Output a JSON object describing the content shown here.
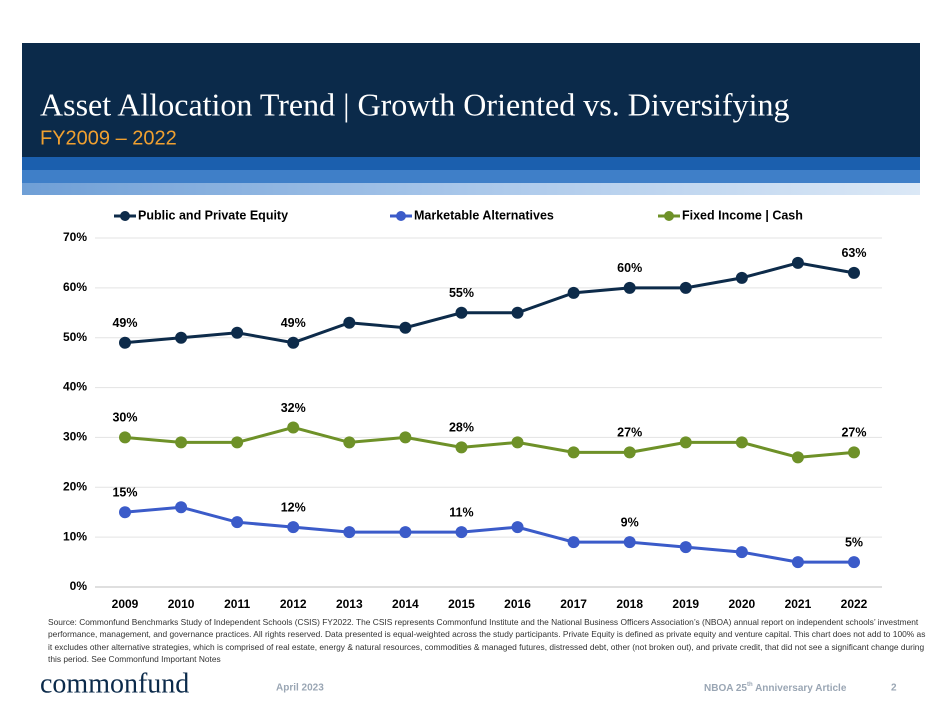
{
  "header": {
    "title": "Asset Allocation Trend | Growth Oriented vs. Diversifying",
    "subtitle": "FY2009 – 2022"
  },
  "chart_data": {
    "type": "line",
    "categories": [
      "2009",
      "2010",
      "2011",
      "2012",
      "2013",
      "2014",
      "2015",
      "2016",
      "2017",
      "2018",
      "2019",
      "2020",
      "2021",
      "2022"
    ],
    "series": [
      {
        "name": "Public and Private Equity",
        "color": "#0d2b4a",
        "values": [
          49,
          50,
          51,
          49,
          53,
          52,
          55,
          55,
          59,
          60,
          60,
          62,
          65,
          63
        ],
        "value_labels": [
          "49%",
          null,
          null,
          "49%",
          null,
          null,
          "55%",
          null,
          null,
          "60%",
          null,
          null,
          null,
          "63%"
        ]
      },
      {
        "name": "Marketable Alternatives",
        "color": "#3b5bc9",
        "values": [
          15,
          16,
          13,
          12,
          11,
          11,
          11,
          12,
          9,
          9,
          8,
          7,
          5,
          5
        ],
        "value_labels": [
          "15%",
          null,
          null,
          "12%",
          null,
          null,
          "11%",
          null,
          null,
          "9%",
          null,
          null,
          null,
          "5%"
        ]
      },
      {
        "name": "Fixed Income | Cash",
        "color": "#6e9128",
        "values": [
          30,
          29,
          29,
          32,
          29,
          30,
          28,
          29,
          27,
          27,
          29,
          29,
          26,
          27
        ],
        "value_labels": [
          "30%",
          null,
          null,
          "32%",
          null,
          null,
          "28%",
          null,
          null,
          "27%",
          null,
          null,
          null,
          "27%"
        ]
      }
    ],
    "ylim": [
      0,
      70
    ],
    "yticks": [
      {
        "value": 0,
        "label": "0%"
      },
      {
        "value": 10,
        "label": "10%"
      },
      {
        "value": 20,
        "label": "20%"
      },
      {
        "value": 30,
        "label": "30%"
      },
      {
        "value": 40,
        "label": "40%"
      },
      {
        "value": 50,
        "label": "50%"
      },
      {
        "value": 60,
        "label": "60%"
      },
      {
        "value": 70,
        "label": "70%"
      }
    ],
    "grid": true,
    "legend": "top"
  },
  "footer": {
    "source": "Source: Commonfund Benchmarks Study of Independent Schools (CSIS) FY2022. The CSIS represents Commonfund Institute and the National Business Officers Association’s (NBOA) annual report on independent schools’ investment performance, management, and governance practices. All rights reserved. Data presented is equal-weighted across the study participants. Private Equity is defined as private equity and venture capital. This chart does not add to 100% as it excludes other alternative strategies, which is comprised of real estate, energy & natural resources, commodities & managed futures, distressed debt, other (not broken out), and private credit, that did not see a significant change during this period. See Commonfund Important Notes",
    "logo": "commonfund",
    "date": "April 2023",
    "article_prefix": "NBOA 25",
    "article_sup": "th",
    "article_suffix": " Anniversary Article",
    "page": "2"
  }
}
